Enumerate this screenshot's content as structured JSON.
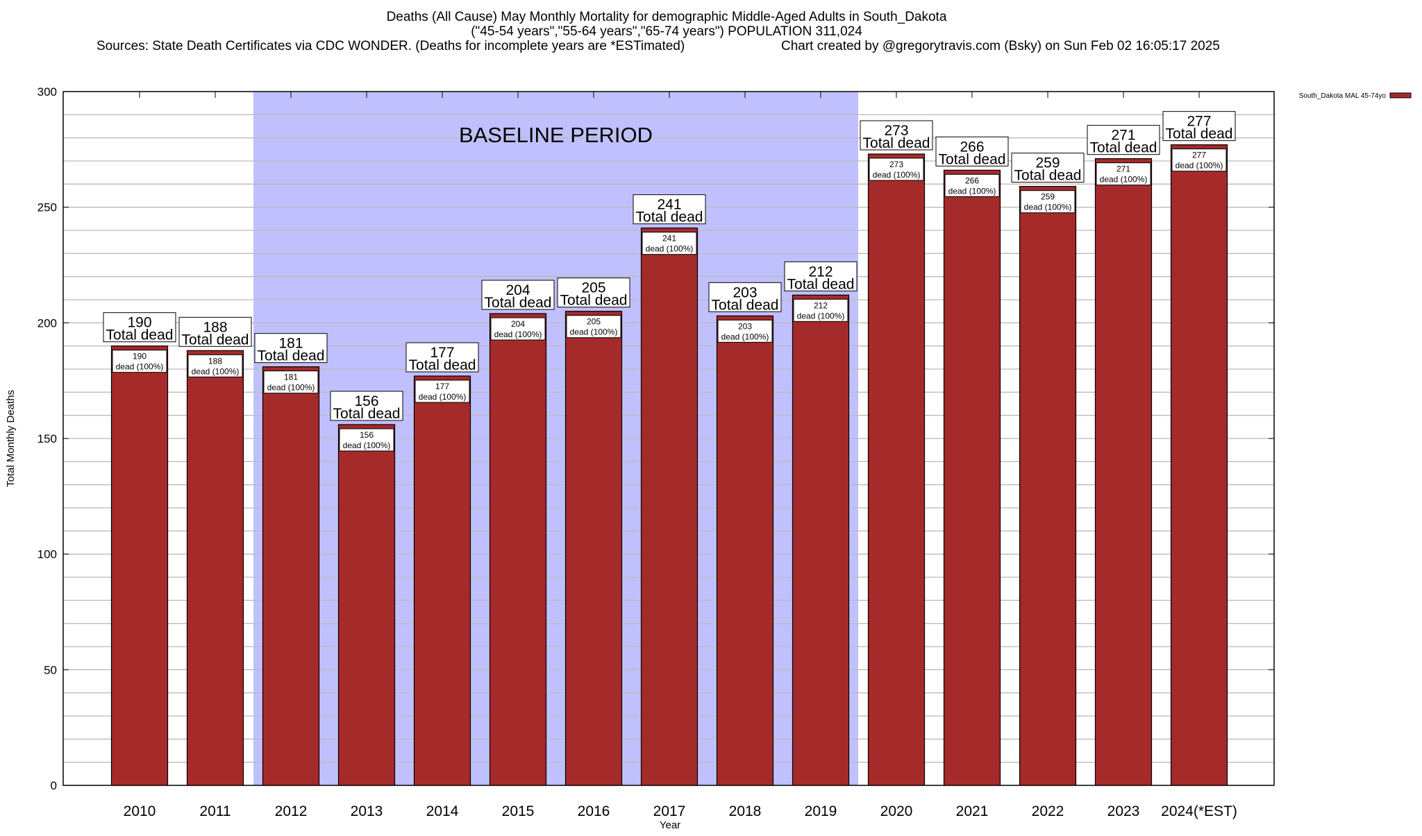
{
  "chart_data": {
    "type": "bar",
    "title": "Deaths (All Cause) May Monthly Mortality for demographic Middle-Aged Adults in South_Dakota",
    "subtitle": "(\"45-54 years\",\"55-64 years\",\"65-74 years\") POPULATION 311,024",
    "sources": "Sources: State Death Certificates via CDC WONDER. (Deaths for incomplete years are *ESTimated)",
    "credit": "Chart created by @gregorytravis.com (Bsky) on Sun Feb 02 16:05:17 2025",
    "xlabel": "Year",
    "ylabel": "Total Monthly Deaths",
    "ylim": [
      0,
      300
    ],
    "yticks": [
      0,
      50,
      100,
      150,
      200,
      250,
      300
    ],
    "minor_grid_step": 10,
    "grid": true,
    "legend_position": "top-right",
    "categories": [
      "2010",
      "2011",
      "2012",
      "2013",
      "2014",
      "2015",
      "2016",
      "2017",
      "2018",
      "2019",
      "2020",
      "2021",
      "2022",
      "2023",
      "2024(*EST)"
    ],
    "series": [
      {
        "name": "South_Dakota MAL 45-74yo",
        "color": "#a52a2a",
        "values": [
          190,
          188,
          181,
          156,
          177,
          204,
          205,
          241,
          203,
          212,
          273,
          266,
          259,
          271,
          277
        ]
      }
    ],
    "total_label_suffix": "Total dead",
    "inner_label_suffix": "dead (100%)",
    "baseline": {
      "label": "BASELINE PERIOD",
      "start": "2012",
      "end": "2019",
      "color": "#c0c0ff"
    }
  }
}
